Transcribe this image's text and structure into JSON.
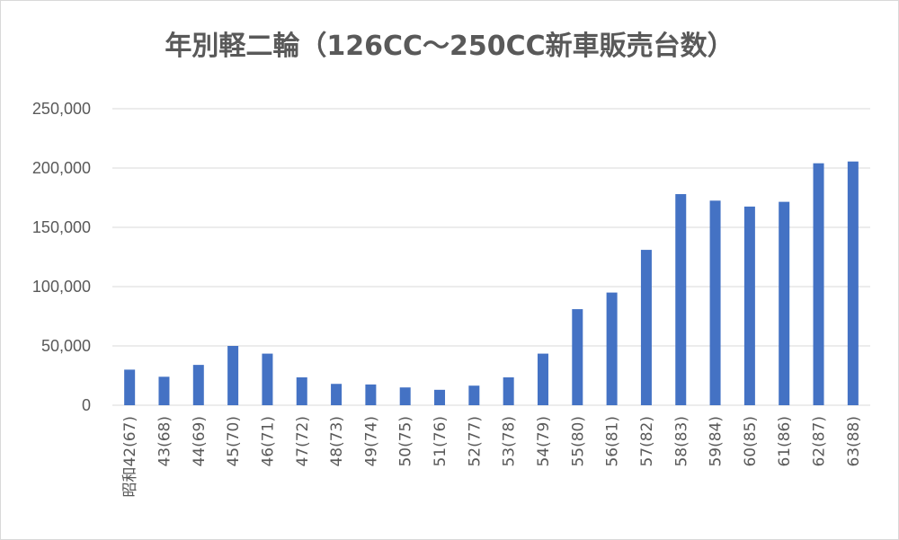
{
  "chart_data": {
    "type": "bar",
    "title": "年別軽二輪（126CC～250CC新車販売台数）",
    "categories": [
      "昭和42(67)",
      "43(68)",
      "44(69)",
      "45(70)",
      "46(71)",
      "47(72)",
      "48(73)",
      "49(74)",
      "50(75)",
      "51(76)",
      "52(77)",
      "53(78)",
      "54(79)",
      "55(80)",
      "56(81)",
      "57(82)",
      "58(83)",
      "59(84)",
      "60(85)",
      "61(86)",
      "62(87)",
      "63(88)"
    ],
    "values": [
      30000,
      24000,
      34000,
      50000,
      43500,
      23500,
      18000,
      17500,
      15000,
      13000,
      16500,
      23500,
      43500,
      81000,
      95000,
      131000,
      178000,
      172500,
      167500,
      171500,
      204000,
      205500
    ],
    "ylim": [
      0,
      250000
    ],
    "yticks": [
      "0",
      "50,000",
      "100,000",
      "150,000",
      "200,000",
      "250,000"
    ],
    "grid": true,
    "bar_color": "#4472c4",
    "grid_color": "#d9d9d9",
    "text_color": "#595959"
  }
}
